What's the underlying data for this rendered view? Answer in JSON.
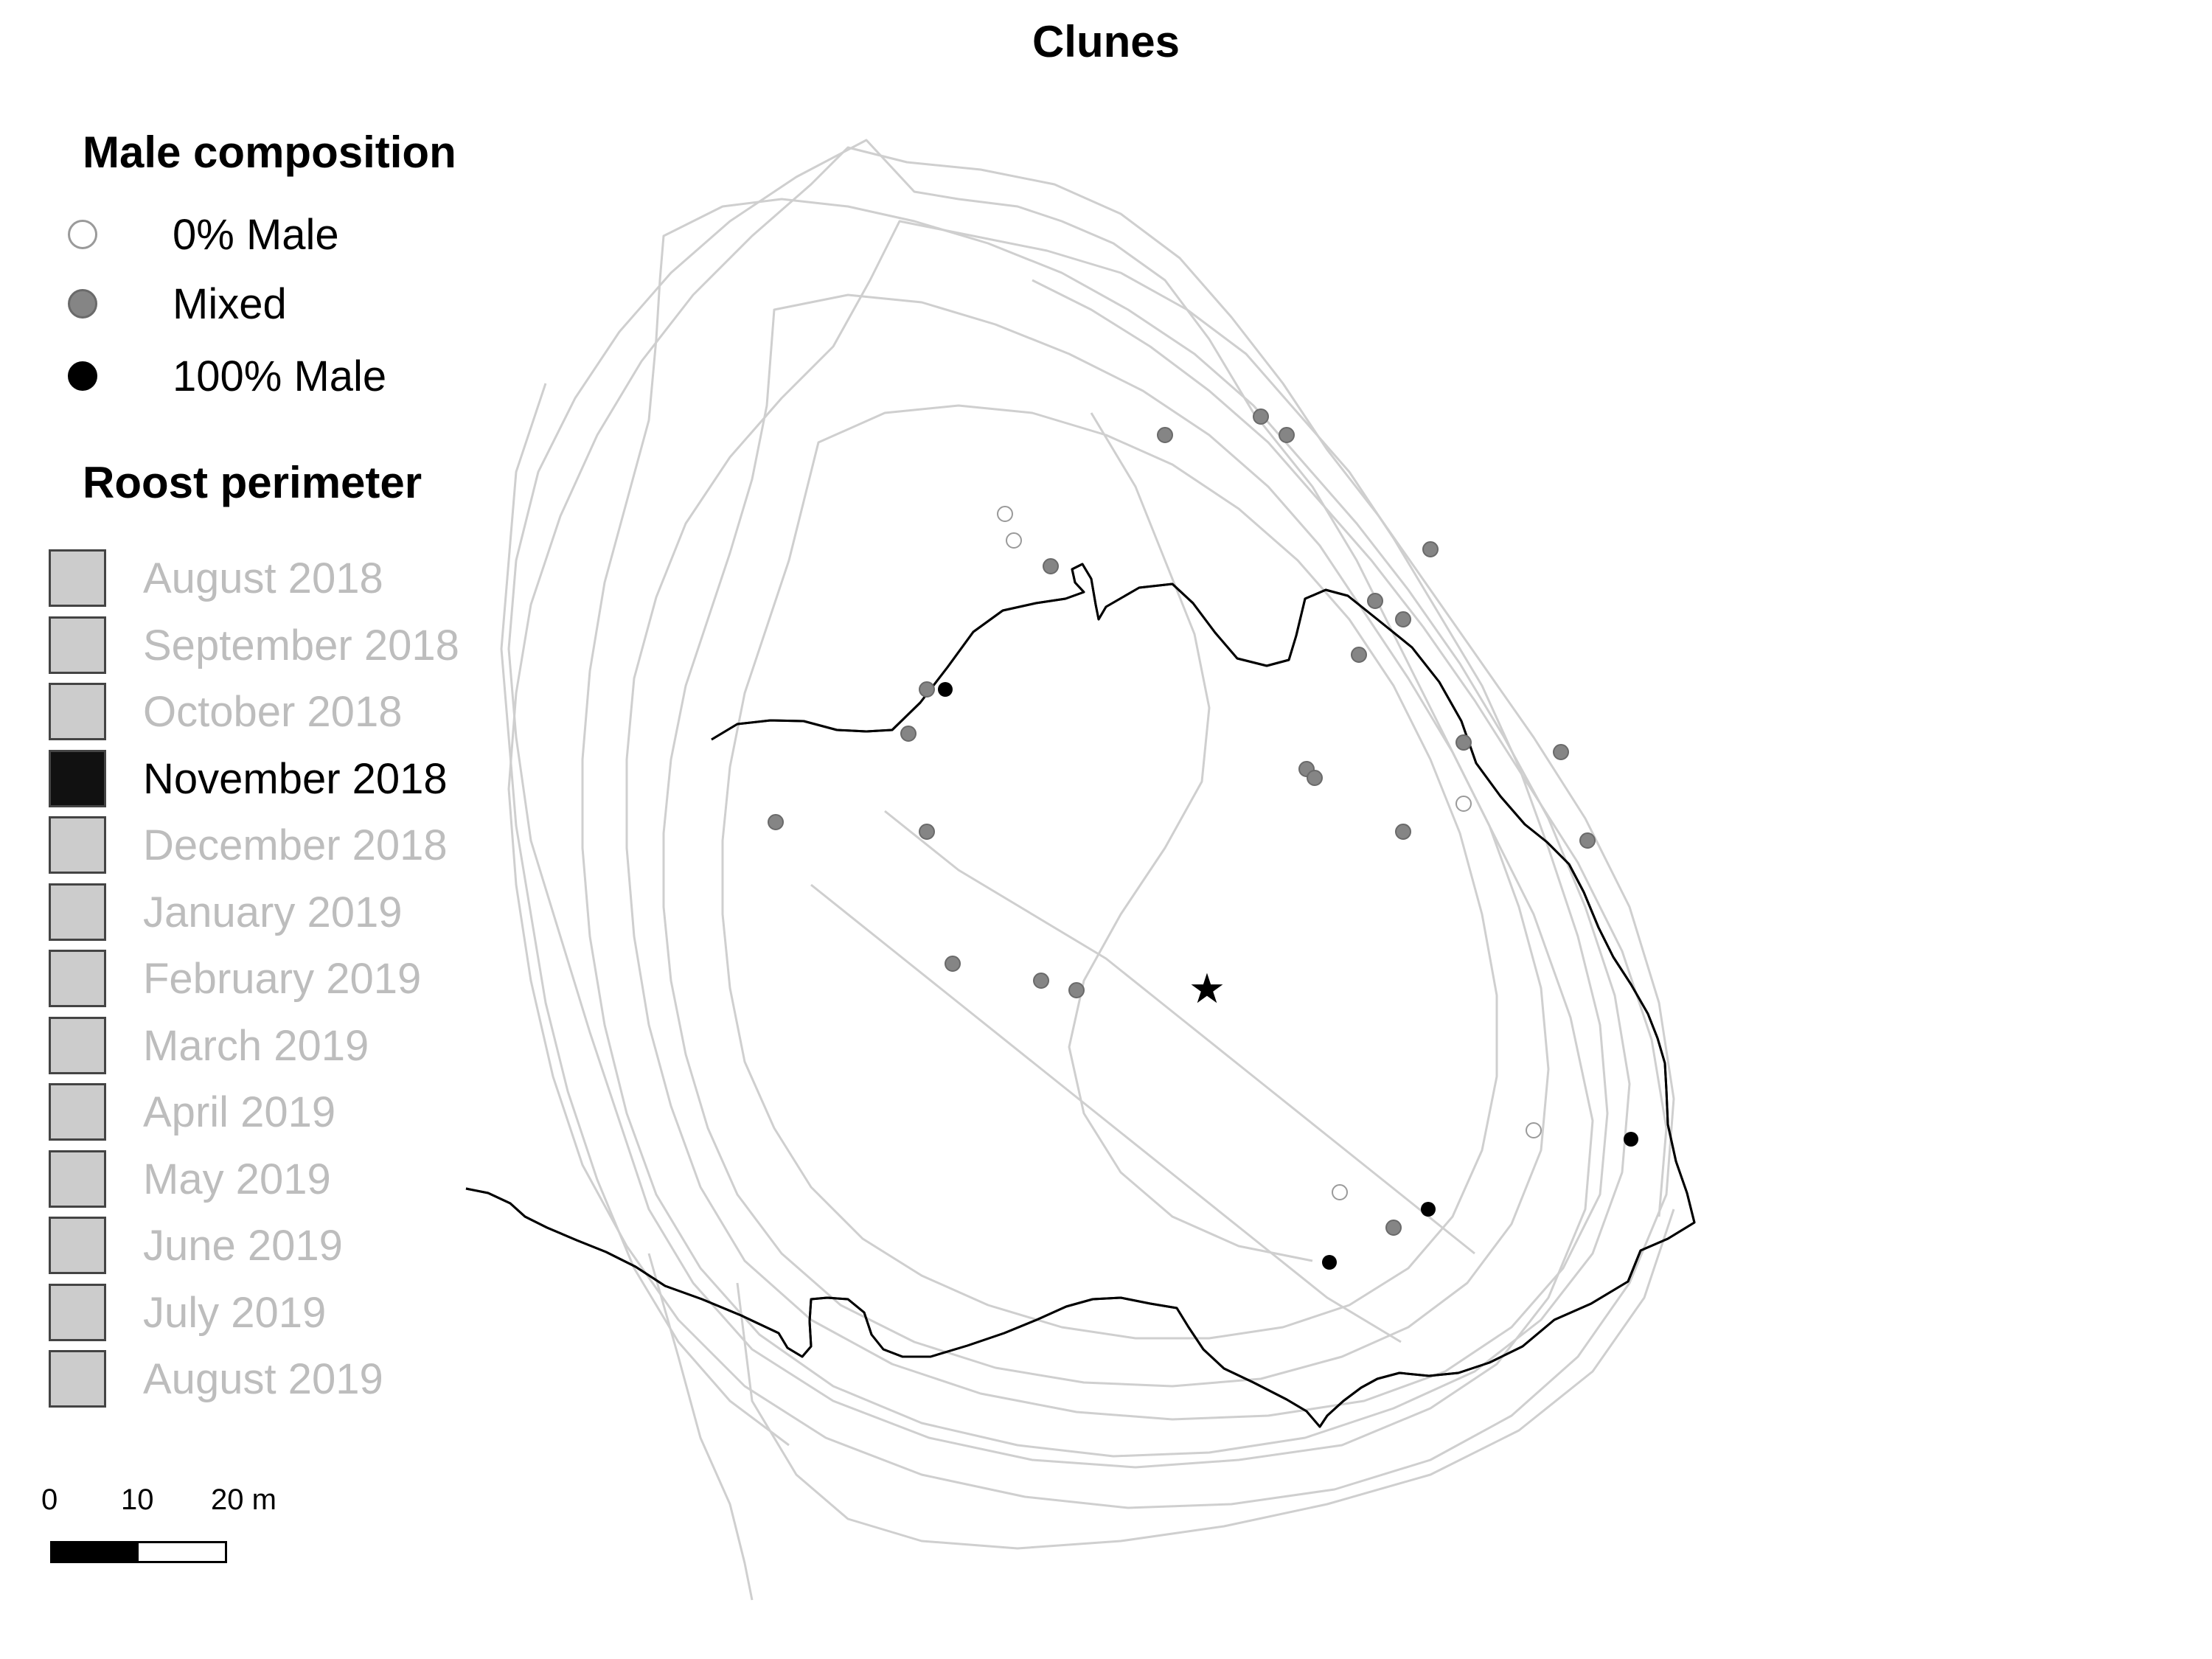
{
  "title": "Clunes",
  "legend": {
    "composition_title": "Male composition",
    "composition_items": [
      {
        "label": "0% Male",
        "fill": "#ffffff",
        "stroke": "#9a9a9a"
      },
      {
        "label": "Mixed",
        "fill": "#858585",
        "stroke": "#6a6a6a"
      },
      {
        "label": "100% Male",
        "fill": "#000000",
        "stroke": "#000000"
      }
    ],
    "perimeter_title": "Roost perimeter",
    "perimeter_items": [
      {
        "label": "August 2018",
        "active": false
      },
      {
        "label": "September 2018",
        "active": false
      },
      {
        "label": "October 2018",
        "active": false
      },
      {
        "label": "November 2018",
        "active": true
      },
      {
        "label": "December 2018",
        "active": false
      },
      {
        "label": "January 2019",
        "active": false
      },
      {
        "label": "February 2019",
        "active": false
      },
      {
        "label": "March 2019",
        "active": false
      },
      {
        "label": "April 2019",
        "active": false
      },
      {
        "label": "May 2019",
        "active": false
      },
      {
        "label": "June 2019",
        "active": false
      },
      {
        "label": "July 2019",
        "active": false
      },
      {
        "label": "August 2019",
        "active": false
      }
    ]
  },
  "scale": {
    "labels": [
      "0",
      "10",
      "20 m"
    ]
  },
  "colors": {
    "active_perimeter": "#000000",
    "inactive_perimeter": "#cfcfcf",
    "roost_center_marker": "#000000"
  },
  "map_symbols": {
    "roost_center": "star-icon"
  }
}
